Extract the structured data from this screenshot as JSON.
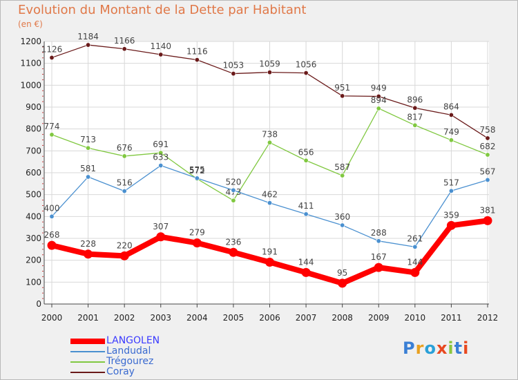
{
  "title": "Evolution du Montant de la Dette par Habitant",
  "subtitle": "(en €)",
  "logo": {
    "letters": [
      "P",
      "r",
      "o",
      "x",
      "i",
      "t",
      "i"
    ],
    "colors": [
      "#3a7fd5",
      "#e8a020",
      "#2aa0d8",
      "#e84820",
      "#8cc63e",
      "#3a7fd5",
      "#e84820"
    ]
  },
  "chart_data": {
    "type": "line",
    "x": [
      "2000",
      "2001",
      "2002",
      "2003",
      "2004",
      "2005",
      "2006",
      "2007",
      "2008",
      "2009",
      "2010",
      "2011",
      "2012"
    ],
    "ylim": [
      0,
      1200
    ],
    "yticks": [
      "0",
      "100",
      "200",
      "300",
      "400",
      "500",
      "600",
      "700",
      "800",
      "900",
      "1000",
      "1100",
      "1200"
    ],
    "grid": true,
    "legend_position": "bottom-left",
    "series": [
      {
        "name": "LANGOLEN",
        "color": "#ff0000",
        "values": [
          268,
          228,
          220,
          307,
          279,
          236,
          191,
          144,
          95,
          167,
          144,
          359,
          381
        ],
        "labels": [
          "268",
          "228",
          "220",
          "307",
          "279",
          "236",
          "191",
          "144",
          "95",
          "167",
          "144",
          "359",
          "381"
        ]
      },
      {
        "name": "Landudal",
        "color": "#4a90d0",
        "values": [
          400,
          581,
          516,
          633,
          575,
          520,
          462,
          411,
          360,
          288,
          261,
          517,
          567
        ],
        "labels": [
          "400",
          "581",
          "516",
          "633",
          "575",
          "520",
          "462",
          "411",
          "360",
          "288",
          "261",
          "517",
          "567"
        ]
      },
      {
        "name": "Trégourez",
        "color": "#80c840",
        "values": [
          774,
          713,
          676,
          691,
          572,
          473,
          738,
          656,
          587,
          894,
          817,
          749,
          682
        ],
        "labels": [
          "774",
          "713",
          "676",
          "691",
          "572",
          "473",
          "738",
          "656",
          "587",
          "894",
          "817",
          "749",
          "682"
        ]
      },
      {
        "name": "Coray",
        "color": "#6a1a1a",
        "values": [
          1126,
          1184,
          1166,
          1140,
          1116,
          1053,
          1059,
          1056,
          951,
          949,
          896,
          864,
          758
        ],
        "labels": [
          "1126",
          "1184",
          "1166",
          "1140",
          "1116",
          "1053",
          "1059",
          "1056",
          "951",
          "949",
          "896",
          "864",
          "758"
        ]
      }
    ]
  }
}
